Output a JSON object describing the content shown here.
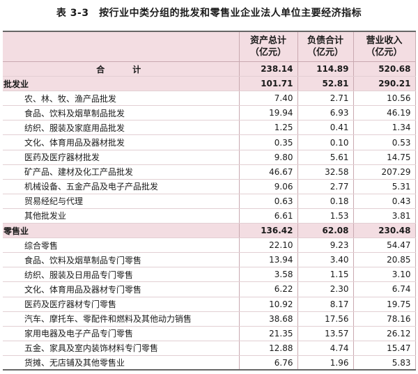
{
  "title": "表 3-3　按行业中类分组的批发和零售业企业法人单位主要经济指标",
  "headers": [
    "",
    "资产总计\n（亿元）",
    "负债合计\n（亿元）",
    "营业收入\n（亿元）"
  ],
  "header_lines": [
    [
      "资产总计",
      "（亿元）"
    ],
    [
      "负债合计",
      "（亿元）"
    ],
    [
      "营业收入",
      "（亿元）"
    ]
  ],
  "rows": [
    {
      "type": "total",
      "label": "合计",
      "assets": "238.14",
      "liabilities": "114.89",
      "revenue": "520.68"
    },
    {
      "type": "cat",
      "label": "批发业",
      "assets": "101.71",
      "liabilities": "52.81",
      "revenue": "290.21"
    },
    {
      "type": "sub",
      "label": "农、林、牧、渔产品批发",
      "assets": "7.40",
      "liabilities": "2.71",
      "revenue": "10.56"
    },
    {
      "type": "sub",
      "label": "食品、饮料及烟草制品批发",
      "assets": "19.94",
      "liabilities": "6.93",
      "revenue": "46.19"
    },
    {
      "type": "sub",
      "label": "纺织、服装及家庭用品批发",
      "assets": "1.25",
      "liabilities": "0.41",
      "revenue": "1.34"
    },
    {
      "type": "sub",
      "label": "文化、体育用品及器材批发",
      "assets": "0.35",
      "liabilities": "0.10",
      "revenue": "0.53"
    },
    {
      "type": "sub",
      "label": "医药及医疗器材批发",
      "assets": "9.80",
      "liabilities": "5.61",
      "revenue": "14.75"
    },
    {
      "type": "sub",
      "label": "矿产品、建材及化工产品批发",
      "assets": "46.67",
      "liabilities": "32.58",
      "revenue": "207.29"
    },
    {
      "type": "sub",
      "label": "机械设备、五金产品及电子产品批发",
      "assets": "9.06",
      "liabilities": "2.77",
      "revenue": "5.31"
    },
    {
      "type": "sub",
      "label": "贸易经纪与代理",
      "assets": "0.63",
      "liabilities": "0.18",
      "revenue": "0.43"
    },
    {
      "type": "sub",
      "label": "其他批发业",
      "assets": "6.61",
      "liabilities": "1.53",
      "revenue": "3.81"
    },
    {
      "type": "cat",
      "label": "零售业",
      "assets": "136.42",
      "liabilities": "62.08",
      "revenue": "230.48"
    },
    {
      "type": "sub",
      "label": "综合零售",
      "assets": "22.10",
      "liabilities": "9.23",
      "revenue": "54.47"
    },
    {
      "type": "sub",
      "label": "食品、饮料及烟草制品专门零售",
      "assets": "13.94",
      "liabilities": "3.40",
      "revenue": "20.85"
    },
    {
      "type": "sub",
      "label": "纺织、服装及日用品专门零售",
      "assets": "3.58",
      "liabilities": "1.15",
      "revenue": "3.10"
    },
    {
      "type": "sub",
      "label": "文化、体育用品及器材专门零售",
      "assets": "6.22",
      "liabilities": "2.30",
      "revenue": "6.74"
    },
    {
      "type": "sub",
      "label": "医药及医疗器材专门零售",
      "assets": "10.92",
      "liabilities": "8.17",
      "revenue": "19.75"
    },
    {
      "type": "sub",
      "label": "汽车、摩托车、零配件和燃料及其他动力销售",
      "assets": "38.68",
      "liabilities": "17.56",
      "revenue": "78.16"
    },
    {
      "type": "sub",
      "label": "家用电器及电子产品专门零售",
      "assets": "21.35",
      "liabilities": "13.57",
      "revenue": "26.12"
    },
    {
      "type": "sub",
      "label": "五金、家具及室内装饰材料专门零售",
      "assets": "12.88",
      "liabilities": "4.74",
      "revenue": "15.47"
    },
    {
      "type": "sub",
      "label": "货摊、无店铺及其他零售业",
      "assets": "6.76",
      "liabilities": "1.96",
      "revenue": "5.83"
    }
  ]
}
